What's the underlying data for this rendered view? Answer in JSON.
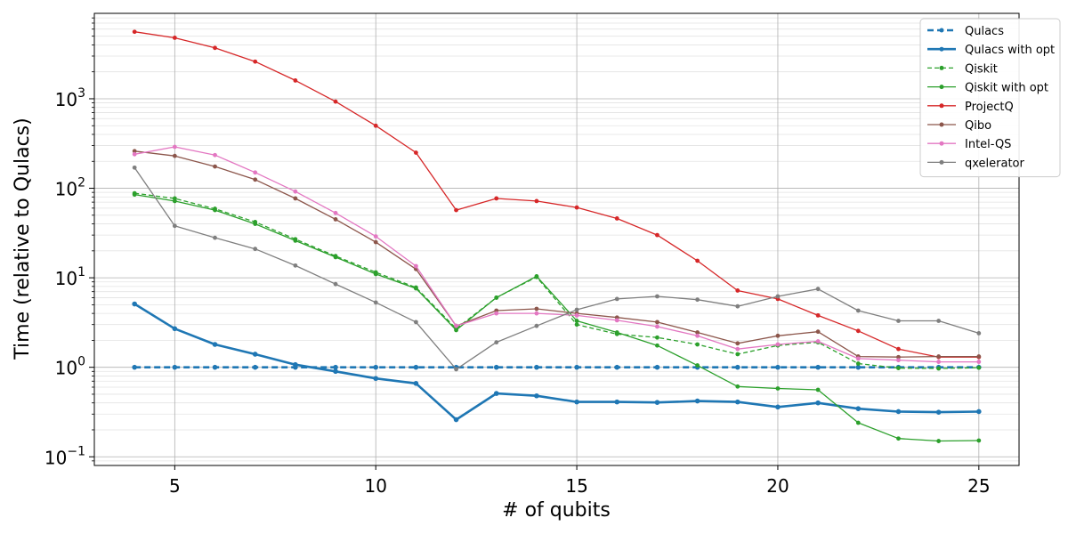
{
  "chart_data": {
    "type": "line",
    "xlabel": "# of qubits",
    "ylabel": "Time (relative to Qulacs)",
    "xlim": [
      3,
      26
    ],
    "ylim": [
      0.08,
      9000
    ],
    "y_scale": "log",
    "grid": true,
    "legend_position": "top-right",
    "x_ticks": [
      5,
      10,
      15,
      20,
      25
    ],
    "y_ticks": [
      {
        "value": 0.1,
        "base": "10",
        "exp": "−1"
      },
      {
        "value": 1,
        "base": "10",
        "exp": "0"
      },
      {
        "value": 10,
        "base": "10",
        "exp": "1"
      },
      {
        "value": 100,
        "base": "10",
        "exp": "2"
      },
      {
        "value": 1000,
        "base": "10",
        "exp": "3"
      }
    ],
    "x": [
      4,
      5,
      6,
      7,
      8,
      9,
      10,
      11,
      12,
      13,
      14,
      15,
      16,
      17,
      18,
      19,
      20,
      21,
      22,
      23,
      24,
      25
    ],
    "series": [
      {
        "name": "Qulacs",
        "color": "#1f77b4",
        "dash": true,
        "width": 2.6,
        "values": [
          1,
          1,
          1,
          1,
          1,
          1,
          1,
          1,
          1,
          1,
          1,
          1,
          1,
          1,
          1,
          1,
          1,
          1,
          1,
          1,
          1,
          1
        ]
      },
      {
        "name": "Qulacs with opt",
        "color": "#1f77b4",
        "dash": false,
        "width": 2.6,
        "values": [
          5.1,
          2.7,
          1.8,
          1.4,
          1.07,
          0.9,
          0.75,
          0.66,
          0.26,
          0.51,
          0.48,
          0.41,
          0.41,
          0.405,
          0.42,
          0.41,
          0.36,
          0.4,
          0.345,
          0.32,
          0.315,
          0.32
        ]
      },
      {
        "name": "Qiskit",
        "color": "#2ca02c",
        "dash": true,
        "width": 1.3,
        "values": [
          88,
          77,
          59,
          42,
          27,
          17.5,
          11.5,
          7.8,
          2.7,
          6.0,
          10.2,
          3.0,
          2.35,
          2.15,
          1.8,
          1.4,
          1.75,
          1.9,
          1.1,
          0.98,
          0.97,
          0.99
        ]
      },
      {
        "name": "Qiskit with opt",
        "color": "#2ca02c",
        "dash": false,
        "width": 1.3,
        "values": [
          85,
          72,
          57,
          40,
          26,
          17,
          11,
          7.6,
          2.6,
          6.0,
          10.4,
          3.3,
          2.45,
          1.75,
          1.05,
          0.61,
          0.58,
          0.56,
          0.24,
          0.16,
          0.15,
          0.152
        ]
      },
      {
        "name": "ProjectQ",
        "color": "#d62728",
        "dash": false,
        "width": 1.3,
        "values": [
          5600,
          4800,
          3700,
          2600,
          1600,
          930,
          500,
          250,
          57,
          77,
          72,
          61,
          46,
          30,
          15.5,
          7.2,
          5.8,
          3.8,
          2.55,
          1.6,
          1.3,
          1.3
        ]
      },
      {
        "name": "Qibo",
        "color": "#8c564b",
        "dash": false,
        "width": 1.3,
        "values": [
          260,
          230,
          175,
          125,
          77,
          45,
          25,
          12.5,
          2.9,
          4.3,
          4.5,
          4.0,
          3.6,
          3.2,
          2.45,
          1.85,
          2.25,
          2.5,
          1.32,
          1.3,
          1.32,
          1.32
        ]
      },
      {
        "name": "Intel-QS",
        "color": "#e377c2",
        "dash": false,
        "width": 1.3,
        "values": [
          240,
          290,
          235,
          150,
          92,
          53,
          29,
          13.5,
          2.9,
          4.0,
          4.0,
          3.8,
          3.35,
          2.85,
          2.25,
          1.6,
          1.8,
          1.95,
          1.25,
          1.2,
          1.15,
          1.15
        ]
      },
      {
        "name": "qxelerator",
        "color": "#7f7f7f",
        "dash": false,
        "width": 1.3,
        "values": [
          170,
          38,
          28,
          21,
          13.7,
          8.5,
          5.3,
          3.2,
          0.95,
          1.9,
          2.9,
          4.4,
          5.8,
          6.2,
          5.7,
          4.8,
          6.2,
          7.5,
          4.3,
          3.3,
          3.3,
          2.4
        ]
      }
    ]
  }
}
